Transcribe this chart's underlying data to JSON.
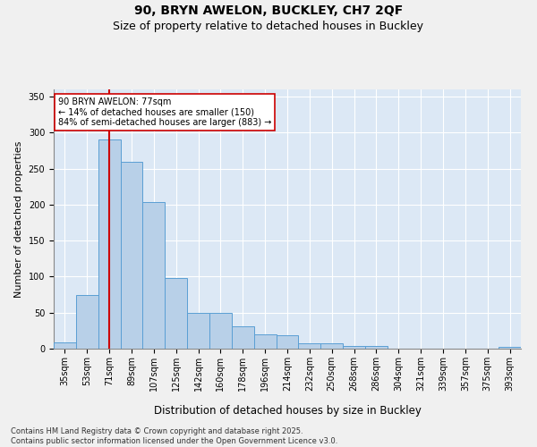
{
  "title": "90, BRYN AWELON, BUCKLEY, CH7 2QF",
  "subtitle": "Size of property relative to detached houses in Buckley",
  "xlabel": "Distribution of detached houses by size in Buckley",
  "ylabel": "Number of detached properties",
  "categories": [
    "35sqm",
    "53sqm",
    "71sqm",
    "89sqm",
    "107sqm",
    "125sqm",
    "142sqm",
    "160sqm",
    "178sqm",
    "196sqm",
    "214sqm",
    "232sqm",
    "250sqm",
    "268sqm",
    "286sqm",
    "304sqm",
    "321sqm",
    "339sqm",
    "357sqm",
    "375sqm",
    "393sqm"
  ],
  "values": [
    9,
    75,
    290,
    260,
    203,
    98,
    50,
    50,
    31,
    20,
    19,
    7,
    7,
    4,
    4,
    0,
    0,
    0,
    0,
    0,
    2
  ],
  "bar_color": "#b8d0e8",
  "bar_edge_color": "#5a9fd4",
  "bar_edge_width": 0.7,
  "vline_x_idx": 2,
  "vline_color": "#cc0000",
  "annotation_text": "90 BRYN AWELON: 77sqm\n← 14% of detached houses are smaller (150)\n84% of semi-detached houses are larger (883) →",
  "annotation_box_edgecolor": "#cc0000",
  "annotation_fontsize": 7,
  "ylim": [
    0,
    360
  ],
  "yticks": [
    0,
    50,
    100,
    150,
    200,
    250,
    300,
    350
  ],
  "plot_bg_color": "#dce8f5",
  "fig_bg_color": "#f0f0f0",
  "grid_color": "#ffffff",
  "title_fontsize": 10,
  "subtitle_fontsize": 9,
  "xlabel_fontsize": 8.5,
  "ylabel_fontsize": 8,
  "tick_fontsize": 7,
  "footer_text": "Contains HM Land Registry data © Crown copyright and database right 2025.\nContains public sector information licensed under the Open Government Licence v3.0.",
  "footer_fontsize": 6
}
